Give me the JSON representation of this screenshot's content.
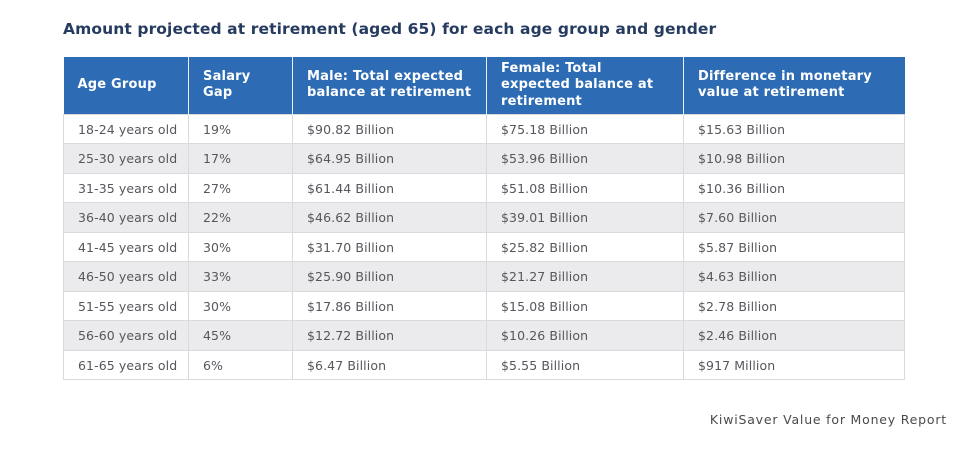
{
  "chart_data": {
    "type": "table",
    "title": "Amount projected at retirement (aged 65) for each age group and gender",
    "source": "KiwiSaver Value for Money Report",
    "columns": [
      "Age Group",
      "Salary Gap",
      "Male: Total expected balance at retirement",
      "Female: Total expected balance at retirement",
      "Difference in monetary value at retirement"
    ],
    "rows": [
      [
        "18-24 years old",
        "19%",
        "$90.82 Billion",
        "$75.18 Billion",
        "$15.63 Billion"
      ],
      [
        "25-30 years old",
        "17%",
        "$64.95 Billion",
        "$53.96 Billion",
        "$10.98 Billion"
      ],
      [
        "31-35 years old",
        "27%",
        "$61.44 Billion",
        "$51.08 Billion",
        "$10.36 Billion"
      ],
      [
        "36-40 years old",
        "22%",
        "$46.62 Billion",
        "$39.01 Billion",
        "$7.60 Billion"
      ],
      [
        "41-45 years old",
        "30%",
        "$31.70 Billion",
        "$25.82 Billion",
        "$5.87 Billion"
      ],
      [
        "46-50 years old",
        "33%",
        "$25.90 Billion",
        "$21.27 Billion",
        "$4.63 Billion"
      ],
      [
        "51-55 years old",
        "30%",
        "$17.86 Billion",
        "$15.08 Billion",
        "$2.78 Billion"
      ],
      [
        "56-60 years old",
        "45%",
        "$12.72 Billion",
        "$10.26 Billion",
        "$2.46 Billion"
      ],
      [
        "61-65 years old",
        "6%",
        "$6.47 Billion",
        "$5.55 Billion",
        "$917 Million"
      ]
    ],
    "layout": {
      "header_position": "top",
      "row_striping": "alternating starting white",
      "source_position": "bottom-right"
    }
  },
  "colors": {
    "header_bg": "#2d6cb4",
    "header_text": "#ffffff",
    "row_bg": "#ffffff",
    "row_alt_bg": "#ebebed",
    "cell_border": "#dadadd",
    "title_text": "#263b60",
    "cell_text": "#55575c",
    "source_text": "#4a4a4a"
  }
}
